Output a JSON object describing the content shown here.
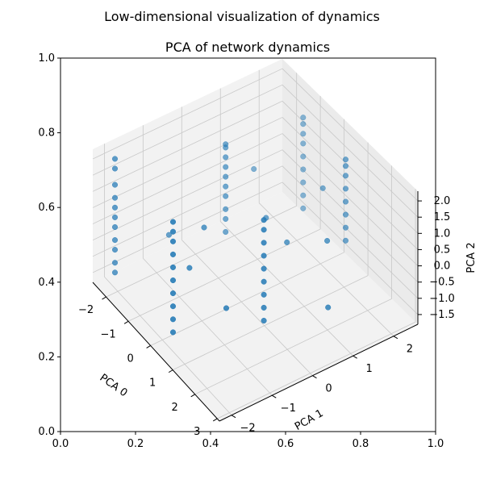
{
  "figure": {
    "suptitle": "Low-dimensional visualization of dynamics"
  },
  "outer_axes": {
    "xticks": [
      "0.0",
      "0.2",
      "0.4",
      "0.6",
      "0.8",
      "1.0"
    ],
    "yticks": [
      "0.0",
      "0.2",
      "0.4",
      "0.6",
      "0.8",
      "1.0"
    ]
  },
  "chart_data": {
    "type": "scatter",
    "title": "PCA of network dynamics",
    "xlabel": "PCA 0",
    "ylabel": "PCA 1",
    "zlabel": "PCA 2",
    "xticks": [
      "−2",
      "−1",
      "0",
      "1",
      "2",
      "3"
    ],
    "yticks": [
      "−2",
      "−1",
      "0",
      "1",
      "2"
    ],
    "zticks": [
      "−1.5",
      "−1.0",
      "−0.5",
      "0.0",
      "0.5",
      "1.0",
      "1.5",
      "2.0"
    ],
    "xlim": [
      -2.6,
      3.1
    ],
    "ylim": [
      -2.3,
      2.6
    ],
    "zlim": [
      -1.8,
      2.3
    ],
    "grid": true,
    "marker_color": "#1f77b4",
    "groups": [
      {
        "x": -2.3,
        "y": -1.9,
        "z": [
          2.0,
          1.7,
          1.2,
          0.8,
          0.5,
          0.2,
          -0.1,
          -0.5,
          -0.8,
          -1.2,
          -1.5
        ]
      },
      {
        "x": -1.2,
        "y": 0.3,
        "z": [
          2.0,
          1.9,
          1.6,
          1.3,
          1.0,
          0.7,
          0.4,
          0.0,
          -0.3,
          -0.7
        ]
      },
      {
        "x": 0.3,
        "y": -1.9,
        "z": [
          2.0,
          1.7,
          1.4,
          1.0,
          0.6,
          0.2,
          -0.2,
          -0.6,
          -1.0,
          -1.4
        ]
      },
      {
        "x": -0.9,
        "y": 2.1,
        "z": [
          2.0,
          1.8,
          1.5,
          1.2,
          0.8,
          0.4,
          0.0,
          -0.4,
          -0.8
        ]
      },
      {
        "x": 1.5,
        "y": -0.3,
        "z": [
          2.0,
          1.7,
          1.3,
          0.9,
          0.5,
          0.1,
          -0.3,
          -0.7,
          -1.1
        ]
      },
      {
        "x": 0.9,
        "y": 2.1,
        "z": [
          2.0,
          1.8,
          1.5,
          1.1,
          0.7,
          0.3,
          -0.1,
          -0.5
        ]
      }
    ],
    "scatter_points": [
      {
        "x": -1.8,
        "y": -0.8,
        "z": -0.6
      },
      {
        "x": -0.6,
        "y": -0.6,
        "z": 0.4
      },
      {
        "x": -0.3,
        "y": 0.8,
        "z": 0.1
      },
      {
        "x": 0.6,
        "y": 0.8,
        "z": 0.0
      },
      {
        "x": 0.9,
        "y": -0.9,
        "z": -0.8
      },
      {
        "x": 1.3,
        "y": 1.4,
        "z": 0.2
      },
      {
        "x": -1.5,
        "y": 1.2,
        "z": 0.5
      },
      {
        "x": 0.1,
        "y": 2.0,
        "z": 0.6
      },
      {
        "x": 2.2,
        "y": 0.9,
        "z": -0.9
      },
      {
        "x": -0.2,
        "y": -1.2,
        "z": -0.2
      }
    ]
  }
}
